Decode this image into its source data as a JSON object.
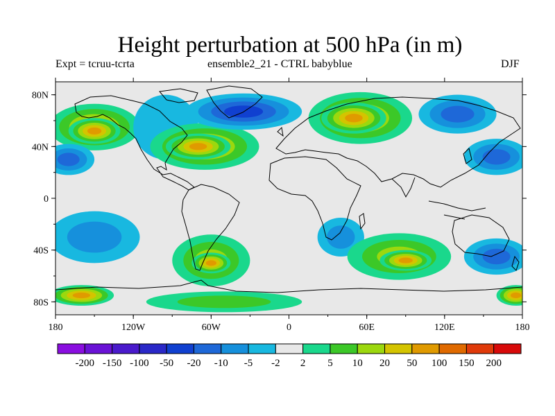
{
  "title": "Height perturbation at 500 hPa (in m)",
  "subtitle_left": "Expt = tcruu-tcrta",
  "subtitle_center": "ensemble2_21 - CTRL babyblue",
  "subtitle_right": "DJF",
  "axes": {
    "lat_labels": [
      "80N",
      "40N",
      "0",
      "40S",
      "80S"
    ],
    "lat_values": [
      80,
      40,
      0,
      -40,
      -80
    ],
    "lon_labels": [
      "180",
      "120W",
      "60W",
      "0",
      "60E",
      "120E",
      "180"
    ],
    "lon_values": [
      -180,
      -120,
      -60,
      0,
      60,
      120,
      180
    ],
    "lon_range": [
      -180,
      180
    ],
    "lat_range": [
      -90,
      90
    ]
  },
  "colorbar": {
    "labels": [
      "-200",
      "-150",
      "-100",
      "-50",
      "-20",
      "-10",
      "-5",
      "-2",
      "2",
      "5",
      "10",
      "20",
      "50",
      "100",
      "150",
      "200"
    ],
    "colors": [
      "#8a0ee0",
      "#6a12d6",
      "#4a1acc",
      "#2a28c8",
      "#1040d0",
      "#1e68d8",
      "#1690dc",
      "#18b8e0",
      "#e8e8e8",
      "#1ad88c",
      "#3cc828",
      "#9cd80e",
      "#d4c400",
      "#e09a00",
      "#e06a00",
      "#e03a0a",
      "#d80a0a"
    ]
  },
  "field": {
    "neutral_color": "#e8e8e8",
    "blobs": [
      {
        "lon": -150,
        "lat": 55,
        "rx": 35,
        "ry": 18,
        "level": 12
      },
      {
        "lon": -150,
        "lat": 52,
        "rx": 20,
        "ry": 10,
        "level": 13
      },
      {
        "lon": -95,
        "lat": 55,
        "rx": 25,
        "ry": 25,
        "level": 7
      },
      {
        "lon": -65,
        "lat": 40,
        "rx": 42,
        "ry": 18,
        "level": 12
      },
      {
        "lon": -70,
        "lat": 40,
        "rx": 25,
        "ry": 10,
        "level": 13
      },
      {
        "lon": -35,
        "lat": 67,
        "rx": 45,
        "ry": 14,
        "level": 4
      },
      {
        "lon": 55,
        "lat": 62,
        "rx": 40,
        "ry": 20,
        "level": 12
      },
      {
        "lon": 50,
        "lat": 62,
        "rx": 25,
        "ry": 12,
        "level": 13
      },
      {
        "lon": 130,
        "lat": 65,
        "rx": 30,
        "ry": 15,
        "level": 5
      },
      {
        "lon": 160,
        "lat": 32,
        "rx": 25,
        "ry": 14,
        "level": 5
      },
      {
        "lon": -170,
        "lat": 30,
        "rx": 20,
        "ry": 12,
        "level": 5
      },
      {
        "lon": -60,
        "lat": -48,
        "rx": 30,
        "ry": 20,
        "level": 11
      },
      {
        "lon": -60,
        "lat": -50,
        "rx": 15,
        "ry": 8,
        "level": 13
      },
      {
        "lon": 40,
        "lat": -30,
        "rx": 18,
        "ry": 15,
        "level": 6
      },
      {
        "lon": 85,
        "lat": -45,
        "rx": 40,
        "ry": 18,
        "level": 11
      },
      {
        "lon": 90,
        "lat": -48,
        "rx": 20,
        "ry": 8,
        "level": 13
      },
      {
        "lon": 160,
        "lat": -45,
        "rx": 25,
        "ry": 14,
        "level": 5
      },
      {
        "lon": -160,
        "lat": -75,
        "rx": 25,
        "ry": 8,
        "level": 13
      },
      {
        "lon": -50,
        "lat": -80,
        "rx": 60,
        "ry": 8,
        "level": 10
      },
      {
        "lon": -150,
        "lat": -30,
        "rx": 35,
        "ry": 20,
        "level": 6
      },
      {
        "lon": 175,
        "lat": -75,
        "rx": 15,
        "ry": 8,
        "level": 13
      }
    ]
  }
}
